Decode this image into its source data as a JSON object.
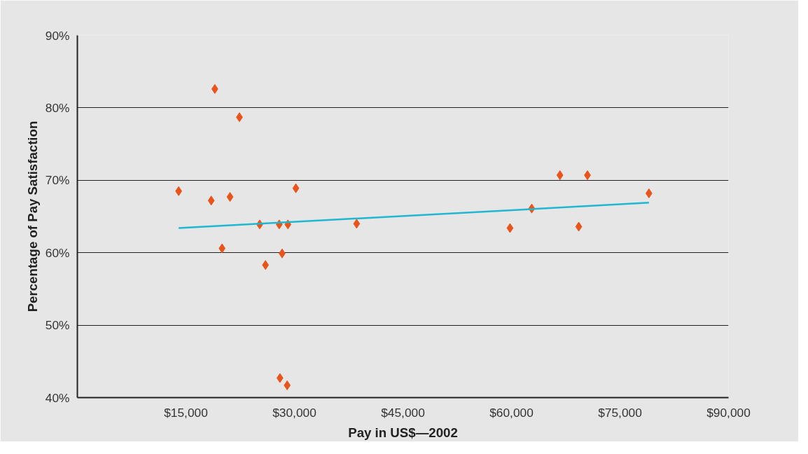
{
  "chart_data": {
    "type": "scatter",
    "xlabel": "Pay in US$—2002",
    "ylabel": "Percentage of Pay Satisfaction",
    "xlim": [
      0,
      90000
    ],
    "ylim": [
      40,
      90
    ],
    "xticks": [
      {
        "value": 15000,
        "label": "$15,000"
      },
      {
        "value": 30000,
        "label": "$30,000"
      },
      {
        "value": 45000,
        "label": "$45,000"
      },
      {
        "value": 60000,
        "label": "$60,000"
      },
      {
        "value": 75000,
        "label": "$75,000"
      },
      {
        "value": 90000,
        "label": "$90,000"
      }
    ],
    "yticks": [
      {
        "value": 40,
        "label": "40%"
      },
      {
        "value": 50,
        "label": "50%"
      },
      {
        "value": 60,
        "label": "60%"
      },
      {
        "value": 70,
        "label": "70%"
      },
      {
        "value": 80,
        "label": "80%"
      },
      {
        "value": 90,
        "label": "90%"
      }
    ],
    "grid": "y",
    "series": [
      {
        "marker": "diamond",
        "color": "#e8541a",
        "x": [
          14000,
          19000,
          18500,
          22400,
          21100,
          20000,
          25200,
          26000,
          27900,
          29100,
          28300,
          30200,
          28000,
          29000,
          38600,
          59800,
          62800,
          66700,
          70500,
          69300,
          79000
        ],
        "values": [
          68.5,
          82.6,
          67.2,
          78.7,
          67.7,
          60.6,
          63.9,
          58.3,
          63.9,
          63.9,
          59.9,
          68.9,
          42.7,
          41.7,
          64.0,
          63.4,
          66.1,
          70.7,
          70.7,
          63.6,
          68.2
        ]
      },
      {
        "type": "line",
        "color": "#1fb8d0",
        "x": [
          14000,
          79000
        ],
        "values": [
          63.4,
          66.9
        ]
      }
    ]
  }
}
